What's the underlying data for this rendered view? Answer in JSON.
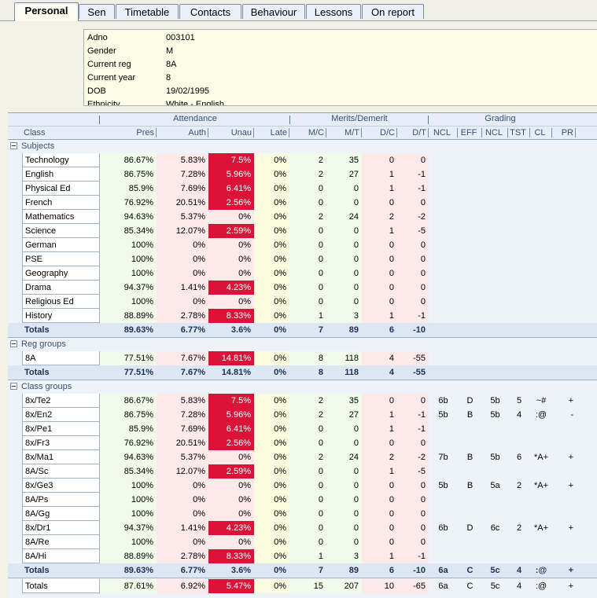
{
  "tabs": [
    "Personal",
    "Sen",
    "Timetable",
    "Contacts",
    "Behaviour",
    "Lessons",
    "On report"
  ],
  "info": [
    {
      "k": "Adno",
      "v": "003101"
    },
    {
      "k": "Gender",
      "v": "M"
    },
    {
      "k": "Current reg",
      "v": "8A"
    },
    {
      "k": "Current year",
      "v": "8"
    },
    {
      "k": "DOB",
      "v": "19/02/1995"
    },
    {
      "k": "Ethnicity",
      "v": "White - English"
    }
  ],
  "groups": {
    "attendance": "Attendance",
    "merits": "Merits/Demerit",
    "grading": "Grading"
  },
  "columns": [
    "Class",
    "Pres",
    "Auth",
    "Unau",
    "Late",
    "M/C",
    "M/T",
    "D/C",
    "D/T",
    "NCL",
    "EFF",
    "NCL",
    "TST",
    "CL",
    "PR"
  ],
  "sections": {
    "subjects": {
      "label": "Subjects",
      "rows": [
        [
          "Technology",
          "86.67%",
          "5.83%",
          "7.5%",
          "0%",
          "2",
          "35",
          "0",
          "0",
          "",
          "",
          "",
          "",
          "",
          ""
        ],
        [
          "English",
          "86.75%",
          "7.28%",
          "5.96%",
          "0%",
          "2",
          "27",
          "1",
          "-1",
          "",
          "",
          "",
          "",
          "",
          ""
        ],
        [
          "Physical Ed",
          "85.9%",
          "7.69%",
          "6.41%",
          "0%",
          "0",
          "0",
          "1",
          "-1",
          "",
          "",
          "",
          "",
          "",
          ""
        ],
        [
          "French",
          "76.92%",
          "20.51%",
          "2.56%",
          "0%",
          "0",
          "0",
          "0",
          "0",
          "",
          "",
          "",
          "",
          "",
          ""
        ],
        [
          "Mathematics",
          "94.63%",
          "5.37%",
          "0%",
          "0%",
          "2",
          "24",
          "2",
          "-2",
          "",
          "",
          "",
          "",
          "",
          ""
        ],
        [
          "Science",
          "85.34%",
          "12.07%",
          "2.59%",
          "0%",
          "0",
          "0",
          "1",
          "-5",
          "",
          "",
          "",
          "",
          "",
          ""
        ],
        [
          "German",
          "100%",
          "0%",
          "0%",
          "0%",
          "0",
          "0",
          "0",
          "0",
          "",
          "",
          "",
          "",
          "",
          ""
        ],
        [
          "PSE",
          "100%",
          "0%",
          "0%",
          "0%",
          "0",
          "0",
          "0",
          "0",
          "",
          "",
          "",
          "",
          "",
          ""
        ],
        [
          "Geography",
          "100%",
          "0%",
          "0%",
          "0%",
          "0",
          "0",
          "0",
          "0",
          "",
          "",
          "",
          "",
          "",
          ""
        ],
        [
          "Drama",
          "94.37%",
          "1.41%",
          "4.23%",
          "0%",
          "0",
          "0",
          "0",
          "0",
          "",
          "",
          "",
          "",
          "",
          ""
        ],
        [
          "Religious Ed",
          "100%",
          "0%",
          "0%",
          "0%",
          "0",
          "0",
          "0",
          "0",
          "",
          "",
          "",
          "",
          "",
          ""
        ],
        [
          "History",
          "88.89%",
          "2.78%",
          "8.33%",
          "0%",
          "1",
          "3",
          "1",
          "-1",
          "",
          "",
          "",
          "",
          "",
          ""
        ]
      ],
      "totals": [
        "Totals",
        "89.63%",
        "6.77%",
        "3.6%",
        "0%",
        "7",
        "89",
        "6",
        "-10",
        "",
        "",
        "",
        "",
        "",
        ""
      ]
    },
    "reg": {
      "label": "Reg groups",
      "rows": [
        [
          "8A",
          "77.51%",
          "7.67%",
          "14.81%",
          "0%",
          "8",
          "118",
          "4",
          "-55",
          "",
          "",
          "",
          "",
          "",
          ""
        ]
      ],
      "totals": [
        "Totals",
        "77.51%",
        "7.67%",
        "14.81%",
        "0%",
        "8",
        "118",
        "4",
        "-55",
        "",
        "",
        "",
        "",
        "",
        ""
      ]
    },
    "classes": {
      "label": "Class groups",
      "rows": [
        [
          "8x/Te2",
          "86.67%",
          "5.83%",
          "7.5%",
          "0%",
          "2",
          "35",
          "0",
          "0",
          "6b",
          "D",
          "5b",
          "5",
          "~#",
          "+"
        ],
        [
          "8x/En2",
          "86.75%",
          "7.28%",
          "5.96%",
          "0%",
          "2",
          "27",
          "1",
          "-1",
          "5b",
          "B",
          "5b",
          "4",
          ":@",
          "-"
        ],
        [
          "8x/Pe1",
          "85.9%",
          "7.69%",
          "6.41%",
          "0%",
          "0",
          "0",
          "1",
          "-1",
          "",
          "",
          "",
          "",
          "",
          ""
        ],
        [
          "8x/Fr3",
          "76.92%",
          "20.51%",
          "2.56%",
          "0%",
          "0",
          "0",
          "0",
          "0",
          "",
          "",
          "",
          "",
          "",
          ""
        ],
        [
          "8x/Ma1",
          "94.63%",
          "5.37%",
          "0%",
          "0%",
          "2",
          "24",
          "2",
          "-2",
          "7b",
          "B",
          "5b",
          "6",
          "*A+",
          "+"
        ],
        [
          "8A/Sc",
          "85.34%",
          "12.07%",
          "2.59%",
          "0%",
          "0",
          "0",
          "1",
          "-5",
          "",
          "",
          "",
          "",
          "",
          ""
        ],
        [
          "8x/Ge3",
          "100%",
          "0%",
          "0%",
          "0%",
          "0",
          "0",
          "0",
          "0",
          "5b",
          "B",
          "5a",
          "2",
          "*A+",
          "+"
        ],
        [
          "8A/Ps",
          "100%",
          "0%",
          "0%",
          "0%",
          "0",
          "0",
          "0",
          "0",
          "",
          "",
          "",
          "",
          "",
          ""
        ],
        [
          "8A/Gg",
          "100%",
          "0%",
          "0%",
          "0%",
          "0",
          "0",
          "0",
          "0",
          "",
          "",
          "",
          "",
          "",
          ""
        ],
        [
          "8x/Dr1",
          "94.37%",
          "1.41%",
          "4.23%",
          "0%",
          "0",
          "0",
          "0",
          "0",
          "6b",
          "D",
          "6c",
          "2",
          "*A+",
          "+"
        ],
        [
          "8A/Re",
          "100%",
          "0%",
          "0%",
          "0%",
          "0",
          "0",
          "0",
          "0",
          "",
          "",
          "",
          "",
          "",
          ""
        ],
        [
          "8A/Hi",
          "88.89%",
          "2.78%",
          "8.33%",
          "0%",
          "1",
          "3",
          "1",
          "-1",
          "",
          "",
          "",
          "",
          "",
          ""
        ]
      ],
      "totals": [
        "Totals",
        "89.63%",
        "6.77%",
        "3.6%",
        "0%",
        "7",
        "89",
        "6",
        "-10",
        "6a",
        "C",
        "5c",
        "4",
        ":@",
        "+"
      ]
    }
  },
  "grand_total": [
    "Totals",
    "87.61%",
    "6.92%",
    "5.47%",
    "0%",
    "15",
    "207",
    "10",
    "-65",
    "6a",
    "C",
    "5c",
    "4",
    ":@",
    "+"
  ],
  "colors": {
    "unau_highlight": "#dc1339",
    "pres_bg": "#f0fbe9",
    "auth_bg": "#fde8ea",
    "late_bg": "#fbfbdf"
  }
}
